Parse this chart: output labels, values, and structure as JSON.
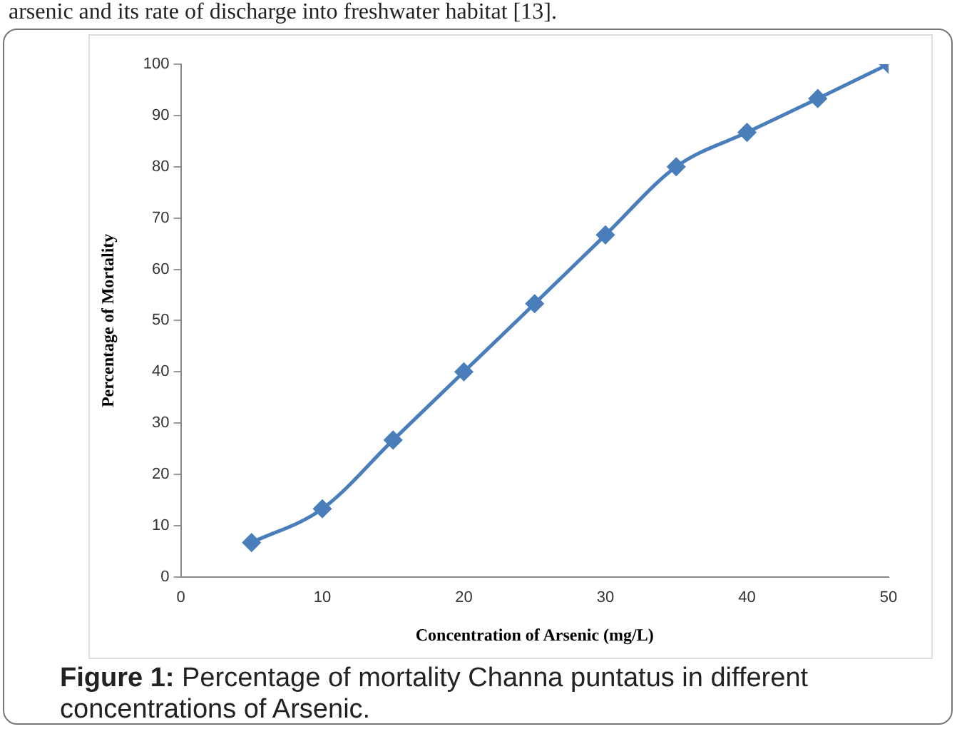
{
  "chart_data": {
    "type": "line",
    "xlabel": "Concentration of Arsenic (mg/L)",
    "ylabel": "Percentage of Mortality",
    "x": [
      5,
      10,
      15,
      20,
      25,
      30,
      35,
      40,
      45,
      50
    ],
    "series": [
      {
        "color": "#4a7ebb",
        "values": [
          6.7,
          13.3,
          26.7,
          40,
          53.3,
          66.7,
          80,
          86.7,
          93.3,
          100
        ]
      }
    ],
    "xlim": [
      0,
      50
    ],
    "xticks": [
      0,
      10,
      20,
      30,
      40,
      50
    ],
    "ylim": [
      0,
      100
    ],
    "yticks": [
      0,
      10,
      20,
      30,
      40,
      50,
      60,
      70,
      80,
      90,
      100
    ],
    "grid": false,
    "legend": false,
    "marker": "diamond",
    "line_style": "solid",
    "annotations": [
      "arsenic and its rate of discharge into freshwater habitat [13].",
      "Figure 1: Percentage of mortality Channa puntatus in different concentrations of Arsenic."
    ]
  }
}
